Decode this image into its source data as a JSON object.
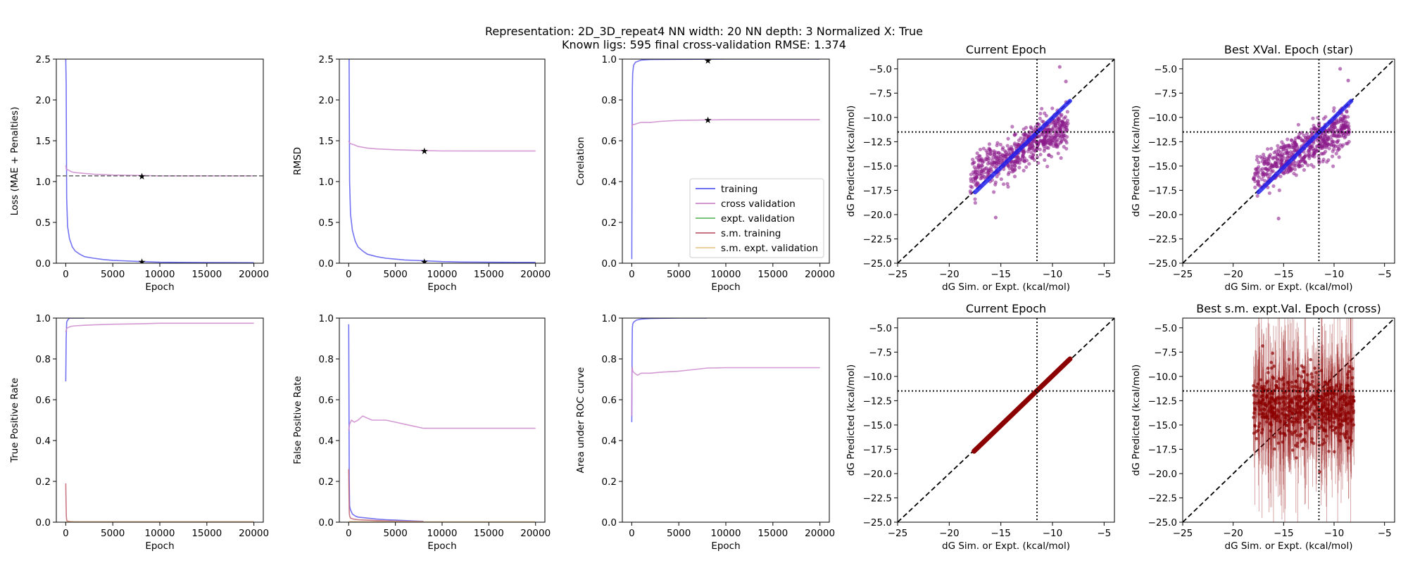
{
  "suptitle": {
    "line1": "Representation: 2D_3D_repeat4    NN width: 20    NN depth: 3    Normalized X: True",
    "line2": "Known ligs: 595      final cross-validation RMSE: 1.374"
  },
  "colors": {
    "training": "#5a5af0",
    "cross_validation": "#cc88cc",
    "expt_validation": "#66bb66",
    "sm_training": "#c06070",
    "sm_expt_validation": "#e8c890",
    "star_training": "#1111aa",
    "star_cv": "#8b008b",
    "scatter_training": "#2222ee",
    "scatter_cv": "#8b1a8b",
    "sm_point": "#8b0000"
  },
  "legend": {
    "entries": [
      "training",
      "cross validation",
      "expt. validation",
      "s.m. training",
      "s.m. expt. validation"
    ],
    "placement": "lower-right"
  },
  "chart_data": [
    {
      "id": "loss",
      "type": "line",
      "title": "",
      "xlabel": "Epoch",
      "ylabel": "Loss (MAE + Penalties)",
      "xlim": [
        -1000,
        21000
      ],
      "ylim": [
        0,
        2.5
      ],
      "xticks": [
        0,
        5000,
        10000,
        15000,
        20000
      ],
      "xtick_labels": [
        "0",
        "5000",
        "10000",
        "15000",
        "20000"
      ],
      "yticks": [
        0,
        0.5,
        1.0,
        1.5,
        2.0,
        2.5
      ],
      "ytick_labels": [
        "0.0",
        "0.5",
        "1.0",
        "1.5",
        "2.0",
        "2.5"
      ],
      "series": [
        {
          "key": "training",
          "x": [
            0,
            50,
            100,
            200,
            400,
            700,
            1000,
            1500,
            2000,
            3000,
            4000,
            5000,
            6000,
            8000,
            10000,
            12000,
            15000,
            18000,
            20000
          ],
          "y": [
            2.5,
            2.2,
            0.8,
            0.45,
            0.3,
            0.2,
            0.15,
            0.11,
            0.08,
            0.06,
            0.045,
            0.035,
            0.03,
            0.02,
            0.012,
            0.01,
            0.008,
            0.007,
            0.006
          ]
        },
        {
          "key": "cross_validation",
          "x": [
            0,
            50,
            100,
            300,
            600,
            1000,
            2000,
            3000,
            5000,
            8000,
            10000,
            15000,
            20000
          ],
          "y": [
            1.2,
            1.16,
            1.15,
            1.14,
            1.12,
            1.11,
            1.1,
            1.09,
            1.08,
            1.075,
            1.07,
            1.07,
            1.07
          ]
        }
      ],
      "hline": {
        "y": 1.07,
        "dashed": true,
        "color": "#666666"
      },
      "stars": [
        {
          "x": 8100,
          "y": 1.07,
          "key": "star_cv"
        },
        {
          "x": 8100,
          "y": 0.02,
          "key": "star_training"
        }
      ]
    },
    {
      "id": "rmsd",
      "type": "line",
      "title": "",
      "xlabel": "Epoch",
      "ylabel": "RMSD",
      "xlim": [
        -1000,
        21000
      ],
      "ylim": [
        0,
        2.5
      ],
      "xticks": [
        0,
        5000,
        10000,
        15000,
        20000
      ],
      "xtick_labels": [
        "0",
        "5000",
        "10000",
        "15000",
        "20000"
      ],
      "yticks": [
        0,
        0.5,
        1.0,
        1.5,
        2.0,
        2.5
      ],
      "ytick_labels": [
        "0.0",
        "0.5",
        "1.0",
        "1.5",
        "2.0",
        "2.5"
      ],
      "series": [
        {
          "key": "training",
          "x": [
            0,
            50,
            100,
            200,
            400,
            700,
            1000,
            1500,
            2000,
            3000,
            4000,
            5000,
            6000,
            8000,
            10000,
            12000,
            15000,
            18000,
            20000
          ],
          "y": [
            2.5,
            2.5,
            1.0,
            0.6,
            0.4,
            0.27,
            0.2,
            0.15,
            0.11,
            0.08,
            0.06,
            0.05,
            0.04,
            0.03,
            0.02,
            0.015,
            0.012,
            0.01,
            0.01
          ]
        },
        {
          "key": "cross_validation",
          "x": [
            0,
            100,
            300,
            600,
            1000,
            2000,
            3000,
            5000,
            8000,
            10000,
            15000,
            20000
          ],
          "y": [
            1.5,
            1.47,
            1.46,
            1.45,
            1.43,
            1.41,
            1.4,
            1.39,
            1.38,
            1.375,
            1.374,
            1.374
          ]
        }
      ],
      "stars": [
        {
          "x": 8100,
          "y": 1.38,
          "key": "star_cv"
        },
        {
          "x": 8100,
          "y": 0.02,
          "key": "star_training"
        }
      ]
    },
    {
      "id": "corelation",
      "type": "line",
      "title": "",
      "xlabel": "Epoch",
      "ylabel": "Corelation",
      "xlim": [
        -1000,
        21000
      ],
      "ylim": [
        0,
        1.0
      ],
      "xticks": [
        0,
        5000,
        10000,
        15000,
        20000
      ],
      "xtick_labels": [
        "0",
        "5000",
        "10000",
        "15000",
        "20000"
      ],
      "yticks": [
        0,
        0.2,
        0.4,
        0.6,
        0.8,
        1.0
      ],
      "ytick_labels": [
        "0.0",
        "0.2",
        "0.4",
        "0.6",
        "0.8",
        "1.0"
      ],
      "series": [
        {
          "key": "training",
          "x": [
            0,
            30,
            60,
            100,
            200,
            400,
            700,
            1000,
            2000,
            5000,
            10000,
            20000
          ],
          "y": [
            0.02,
            0.5,
            0.85,
            0.93,
            0.97,
            0.985,
            0.99,
            0.995,
            0.998,
            0.999,
            1.0,
            1.0
          ]
        },
        {
          "key": "cross_validation",
          "x": [
            0,
            100,
            300,
            600,
            1000,
            2000,
            3000,
            5000,
            8000,
            10000,
            15000,
            20000
          ],
          "y": [
            0.66,
            0.68,
            0.68,
            0.685,
            0.69,
            0.69,
            0.695,
            0.7,
            0.702,
            0.703,
            0.703,
            0.703
          ]
        }
      ],
      "stars": [
        {
          "x": 8100,
          "y": 0.703,
          "key": "star_cv"
        },
        {
          "x": 8100,
          "y": 0.995,
          "key": "star_training"
        }
      ],
      "legend": true
    },
    {
      "id": "tpr",
      "type": "line",
      "title": "",
      "xlabel": "Epoch",
      "ylabel": "True Positive Rate",
      "xlim": [
        -1000,
        21000
      ],
      "ylim": [
        0,
        1.0
      ],
      "xticks": [
        0,
        5000,
        10000,
        15000,
        20000
      ],
      "xtick_labels": [
        "0",
        "5000",
        "10000",
        "15000",
        "20000"
      ],
      "yticks": [
        0,
        0.2,
        0.4,
        0.6,
        0.8,
        1.0
      ],
      "ytick_labels": [
        "0.0",
        "0.2",
        "0.4",
        "0.6",
        "0.8",
        "1.0"
      ],
      "series": [
        {
          "key": "training",
          "x": [
            0,
            50,
            100,
            200,
            400,
            700,
            1000,
            2000
          ],
          "y": [
            0.69,
            0.9,
            0.98,
            0.99,
            1.0,
            1.0,
            1.0,
            1.0
          ]
        },
        {
          "key": "cross_validation",
          "x": [
            0,
            100,
            300,
            600,
            1000,
            2000,
            3000,
            5000,
            8000,
            10000,
            15000,
            20000
          ],
          "y": [
            0.93,
            0.95,
            0.955,
            0.96,
            0.962,
            0.965,
            0.967,
            0.97,
            0.972,
            0.975,
            0.975,
            0.975
          ]
        },
        {
          "key": "sm_training",
          "x": [
            0,
            30,
            60,
            100,
            200,
            500,
            1000,
            5000,
            10000,
            15000,
            20000
          ],
          "y": [
            0.19,
            0.1,
            0.03,
            0.01,
            0.005,
            0.003,
            0.002,
            0.002,
            0.002,
            0.002,
            0.002
          ]
        },
        {
          "key": "sm_expt_validation",
          "x": [
            0,
            5000,
            10000,
            15000,
            20000
          ],
          "y": [
            0.002,
            0.002,
            0.002,
            0.002,
            0.002
          ]
        }
      ]
    },
    {
      "id": "fpr",
      "type": "line",
      "title": "",
      "xlabel": "Epoch",
      "ylabel": "False Positive Rate",
      "xlim": [
        -1000,
        21000
      ],
      "ylim": [
        0,
        1.0
      ],
      "xticks": [
        0,
        5000,
        10000,
        15000,
        20000
      ],
      "xtick_labels": [
        "0",
        "5000",
        "10000",
        "15000",
        "20000"
      ],
      "yticks": [
        0,
        0.2,
        0.4,
        0.6,
        0.8,
        1.0
      ],
      "ytick_labels": [
        "0.0",
        "0.2",
        "0.4",
        "0.6",
        "0.8",
        "1.0"
      ],
      "series": [
        {
          "key": "training",
          "x": [
            0,
            30,
            60,
            100,
            200,
            400,
            700,
            1000,
            2000,
            3000,
            4000,
            5000,
            6000,
            7000,
            8000
          ],
          "y": [
            0.97,
            0.6,
            0.2,
            0.08,
            0.06,
            0.04,
            0.03,
            0.025,
            0.02,
            0.015,
            0.012,
            0.01,
            0.008,
            0.006,
            0.004
          ]
        },
        {
          "key": "cross_validation",
          "x": [
            0,
            100,
            300,
            600,
            1000,
            1500,
            2000,
            2500,
            3000,
            4000,
            5000,
            6000,
            7000,
            8000,
            10000,
            15000,
            20000
          ],
          "y": [
            0.45,
            0.48,
            0.5,
            0.49,
            0.5,
            0.52,
            0.51,
            0.5,
            0.5,
            0.5,
            0.49,
            0.48,
            0.47,
            0.46,
            0.46,
            0.46,
            0.46
          ]
        },
        {
          "key": "sm_training",
          "x": [
            0,
            30,
            60,
            100,
            200,
            500,
            1000,
            2000,
            3000,
            5000,
            8000
          ],
          "y": [
            0.26,
            0.15,
            0.05,
            0.03,
            0.02,
            0.015,
            0.012,
            0.01,
            0.008,
            0.005,
            0.003
          ]
        },
        {
          "key": "sm_expt_validation",
          "x": [
            0,
            5000,
            10000,
            15000,
            20000
          ],
          "y": [
            0.003,
            0.002,
            0.002,
            0.002,
            0.002
          ]
        }
      ]
    },
    {
      "id": "auc",
      "type": "line",
      "title": "",
      "xlabel": "Epoch",
      "ylabel": "Area under ROC curve",
      "xlim": [
        -1000,
        21000
      ],
      "ylim": [
        0,
        1.0
      ],
      "xticks": [
        0,
        5000,
        10000,
        15000,
        20000
      ],
      "xtick_labels": [
        "0",
        "5000",
        "10000",
        "15000",
        "20000"
      ],
      "yticks": [
        0,
        0.2,
        0.4,
        0.6,
        0.8,
        1.0
      ],
      "ytick_labels": [
        "0.0",
        "0.2",
        "0.4",
        "0.6",
        "0.8",
        "1.0"
      ],
      "series": [
        {
          "key": "training",
          "x": [
            0,
            30,
            60,
            100,
            200,
            500,
            1000,
            2000,
            3000,
            5000,
            8000
          ],
          "y": [
            0.49,
            0.8,
            0.95,
            0.97,
            0.98,
            0.99,
            0.995,
            0.998,
            0.999,
            1.0,
            1.0
          ]
        },
        {
          "key": "cross_validation",
          "x": [
            0,
            30,
            60,
            100,
            300,
            600,
            1000,
            2000,
            3000,
            5000,
            6000,
            7000,
            8000,
            10000,
            15000,
            20000
          ],
          "y": [
            0.52,
            0.75,
            0.76,
            0.74,
            0.73,
            0.72,
            0.73,
            0.73,
            0.735,
            0.74,
            0.745,
            0.75,
            0.755,
            0.757,
            0.757,
            0.757
          ]
        }
      ]
    },
    {
      "id": "scatter_current",
      "type": "scatter",
      "title": "Current Epoch",
      "xlabel": "dG Sim. or Expt. (kcal/mol)",
      "ylabel": "dG Predicted (kcal/mol)",
      "xlim": [
        -25,
        -4
      ],
      "ylim": [
        -25,
        -4
      ],
      "xticks": [
        -25,
        -20,
        -15,
        -10,
        -5
      ],
      "xtick_labels": [
        "−25",
        "−20",
        "−15",
        "−10",
        "−5"
      ],
      "yticks": [
        -25,
        -22.5,
        -20,
        -17.5,
        -15,
        -12.5,
        -10,
        -7.5,
        -5
      ],
      "ytick_labels": [
        "−25.0",
        "−22.5",
        "−20.0",
        "−17.5",
        "−15.0",
        "−12.5",
        "−10.0",
        "−7.5",
        "−5.0"
      ],
      "ref_x": -11.5,
      "ref_y": -11.5,
      "training_line": {
        "x": [
          -17.5,
          -8.3
        ],
        "y": [
          -17.7,
          -8.3
        ]
      },
      "cv_points": {
        "x_range": [
          -18,
          -8.5
        ],
        "scatter_sd": 1.4,
        "count": 595,
        "outliers": [
          [
            -15.5,
            -20.3
          ],
          [
            -9.3,
            -4.8
          ],
          [
            -8.7,
            -6.3
          ]
        ]
      }
    },
    {
      "id": "scatter_best",
      "type": "scatter",
      "title": "Best XVal. Epoch (star)",
      "xlabel": "dG Sim. or Expt. (kcal/mol)",
      "ylabel": "dG Predicted (kcal/mol)",
      "xlim": [
        -25,
        -4
      ],
      "ylim": [
        -25,
        -4
      ],
      "xticks": [
        -25,
        -20,
        -15,
        -10,
        -5
      ],
      "xtick_labels": [
        "−25",
        "−20",
        "−15",
        "−10",
        "−5"
      ],
      "yticks": [
        -25,
        -22.5,
        -20,
        -17.5,
        -15,
        -12.5,
        -10,
        -7.5,
        -5
      ],
      "ytick_labels": [
        "−25.0",
        "−22.5",
        "−20.0",
        "−17.5",
        "−15.0",
        "−12.5",
        "−10.0",
        "−7.5",
        "−5.0"
      ],
      "ref_x": -11.5,
      "ref_y": -11.5,
      "training_line": {
        "x": [
          -17.5,
          -8.3
        ],
        "y": [
          -17.7,
          -8.3
        ]
      },
      "cv_points": {
        "x_range": [
          -18,
          -8.5
        ],
        "scatter_sd": 1.4,
        "count": 595,
        "outliers": [
          [
            -15.5,
            -20.4
          ],
          [
            -9.4,
            -5.0
          ],
          [
            -8.6,
            -6.2
          ]
        ]
      }
    },
    {
      "id": "sm_current",
      "type": "scatter",
      "title": "Current Epoch",
      "xlabel": "dG Sim. or Expt. (kcal/mol)",
      "ylabel": "dG Predicted (kcal/mol)",
      "xlim": [
        -25,
        -4
      ],
      "ylim": [
        -25,
        -4
      ],
      "xticks": [
        -25,
        -20,
        -15,
        -10,
        -5
      ],
      "xtick_labels": [
        "−25",
        "−20",
        "−15",
        "−10",
        "−5"
      ],
      "yticks": [
        -25,
        -22.5,
        -20,
        -17.5,
        -15,
        -12.5,
        -10,
        -7.5,
        -5
      ],
      "ytick_labels": [
        "−25.0",
        "−22.5",
        "−20.0",
        "−17.5",
        "−15.0",
        "−12.5",
        "−10.0",
        "−7.5",
        "−5.0"
      ],
      "ref_x": -11.5,
      "ref_y": -11.5,
      "sm_line": {
        "x": [
          -17.6,
          -8.3
        ],
        "y": [
          -17.7,
          -8.2
        ]
      }
    },
    {
      "id": "sm_best",
      "type": "scatter",
      "title": "Best s.m. expt.Val. Epoch (cross)",
      "xlabel": "dG Sim. or Expt. (kcal/mol)",
      "ylabel": "dG Predicted (kcal/mol)",
      "xlim": [
        -25,
        -4
      ],
      "ylim": [
        -25,
        -4
      ],
      "xticks": [
        -25,
        -20,
        -15,
        -10,
        -5
      ],
      "xtick_labels": [
        "−25",
        "−20",
        "−15",
        "−10",
        "−5"
      ],
      "yticks": [
        -25,
        -22.5,
        -20,
        -17.5,
        -15,
        -12.5,
        -10,
        -7.5,
        -5
      ],
      "ytick_labels": [
        "−25.0",
        "−22.5",
        "−20.0",
        "−17.5",
        "−15.0",
        "−12.5",
        "−10.0",
        "−7.5",
        "−5.0"
      ],
      "ref_x": -11.5,
      "ref_y": -11.5,
      "errorbars": {
        "x_range": [
          -18,
          -8
        ],
        "center_y": -13.2,
        "spread_sd": 1.8,
        "err_max": 8,
        "count": 595
      }
    }
  ]
}
